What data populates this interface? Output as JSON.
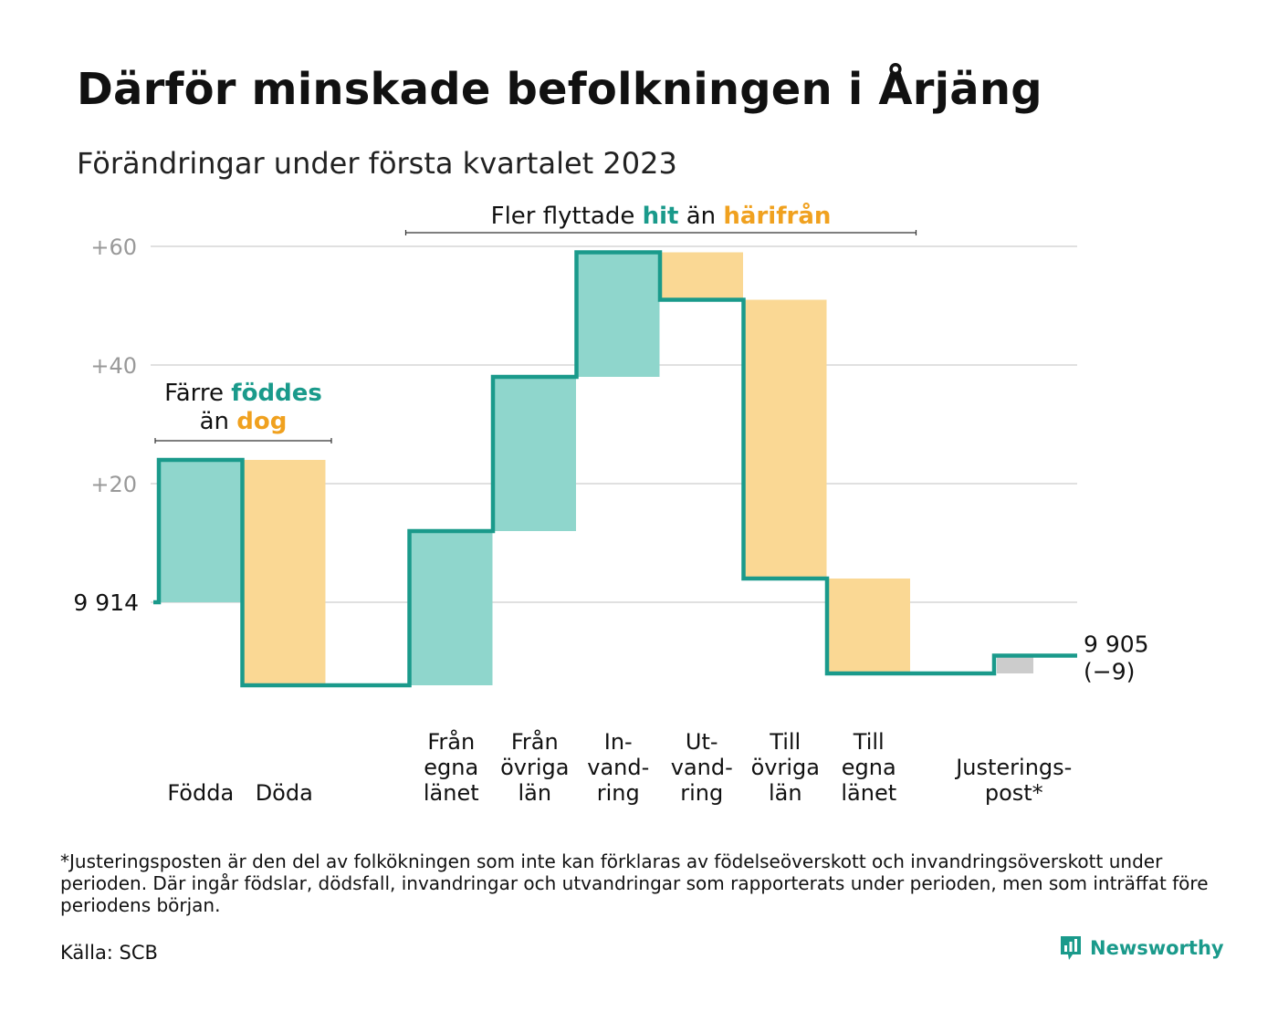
{
  "header": {
    "title": "Därför minskade befolkningen i Årjäng",
    "subtitle": "Förändringar under första kvartalet 2023"
  },
  "colors": {
    "increase": "#8fd6cc",
    "decrease": "#fad894",
    "adjustment": "#cccccc",
    "line": "#1a9a8b",
    "grid": "#e0e0e0",
    "tick": "#999999",
    "hit": "#1a9a8b",
    "harifran": "#f0a11f"
  },
  "chart_data": {
    "type": "waterfall",
    "start_value": 9914,
    "start_label": "9 914",
    "end_label": "9 905",
    "end_change_label": "(−9)",
    "y_axis_unit": "change relative to 9 914",
    "ylim": [
      -16,
      62
    ],
    "yticks": [
      {
        "value": 60,
        "label": "+60"
      },
      {
        "value": 40,
        "label": "+40"
      },
      {
        "value": 20,
        "label": "+20"
      },
      {
        "value": 0,
        "label": ""
      }
    ],
    "steps": [
      {
        "label": [
          "Födda"
        ],
        "change": 24,
        "kind": "increase"
      },
      {
        "label": [
          "Döda"
        ],
        "change": -38,
        "kind": "decrease"
      },
      {
        "label": [
          ""
        ],
        "change": 0,
        "kind": "gap"
      },
      {
        "label": [
          "Från",
          "egna",
          "länet"
        ],
        "change": 26,
        "kind": "increase"
      },
      {
        "label": [
          "Från",
          "övriga",
          "län"
        ],
        "change": 26,
        "kind": "increase"
      },
      {
        "label": [
          "In-",
          "vand-",
          "ring"
        ],
        "change": 21,
        "kind": "increase"
      },
      {
        "label": [
          "Ut-",
          "vand-",
          "ring"
        ],
        "change": -8,
        "kind": "decrease"
      },
      {
        "label": [
          "Till",
          "övriga",
          "län"
        ],
        "change": -47,
        "kind": "decrease"
      },
      {
        "label": [
          "Till",
          "egna",
          "länet"
        ],
        "change": -16,
        "kind": "decrease"
      },
      {
        "label": [
          ""
        ],
        "change": 0,
        "kind": "gap"
      },
      {
        "label": [
          "Justerings-",
          "post*"
        ],
        "change": 3,
        "kind": "adjustment"
      }
    ],
    "annotations": [
      {
        "id": "births",
        "lines": [
          [
            {
              "text": "Färre ",
              "style": "plain"
            },
            {
              "text": "föddes",
              "style": "hit"
            }
          ],
          [
            {
              "text": "än ",
              "style": "plain"
            },
            {
              "text": "dog",
              "style": "harifran"
            }
          ]
        ],
        "from_step": 0,
        "to_step": 1
      },
      {
        "id": "migration",
        "lines": [
          [
            {
              "text": "Fler flyttade ",
              "style": "plain"
            },
            {
              "text": "hit",
              "style": "hit"
            },
            {
              "text": " än ",
              "style": "plain"
            },
            {
              "text": "härifrån",
              "style": "harifran"
            }
          ]
        ],
        "from_step": 3,
        "to_step": 8
      }
    ]
  },
  "footnote": "*Justeringsposten är den del av folkökningen som inte kan förklaras av födelseöverskott och invandringsöverskott under perioden. Där ingår födslar, dödsfall, invandringar och utvandringar som rapporterats under perioden, men som inträffat före periodens början.",
  "source": "Källa: SCB",
  "brand": {
    "name": "Newsworthy",
    "icon": "newsworthy-logo-icon"
  }
}
